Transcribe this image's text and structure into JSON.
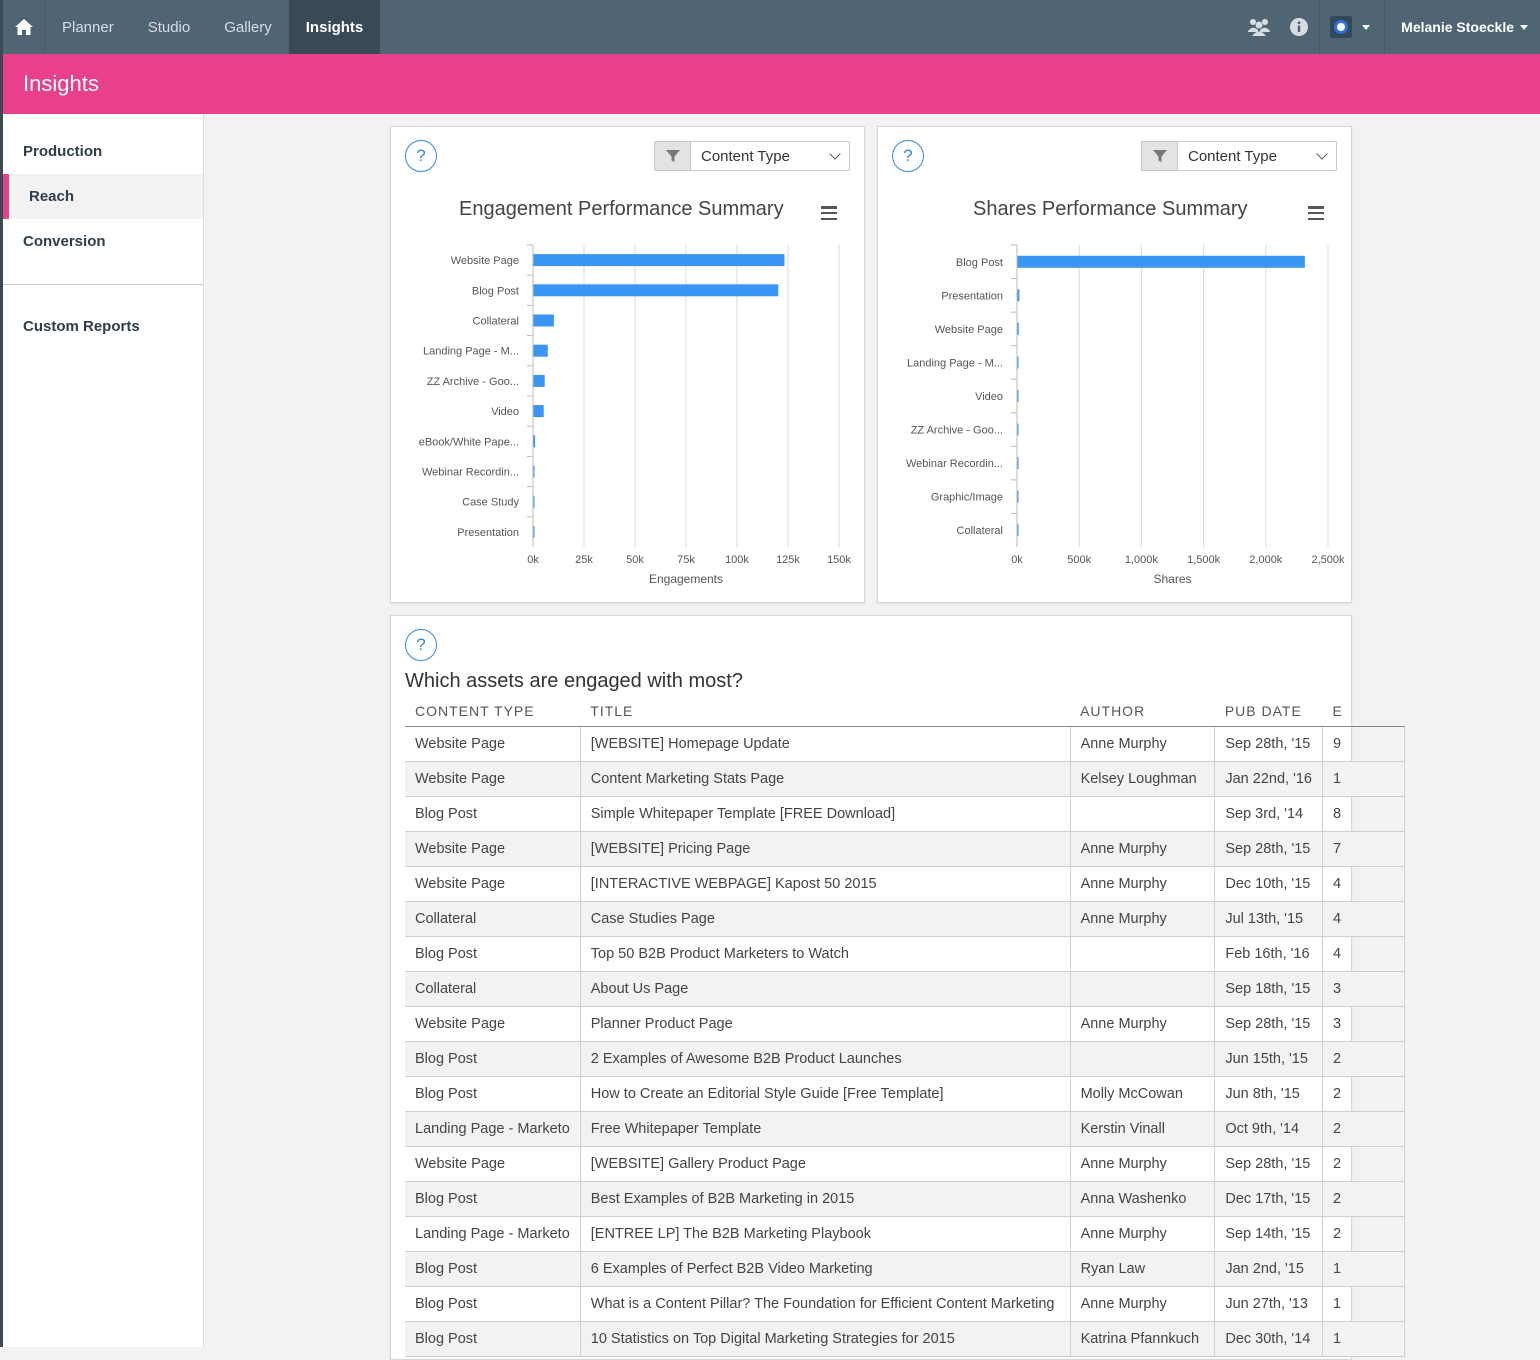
{
  "nav": {
    "tabs": [
      {
        "label": "Planner",
        "active": false
      },
      {
        "label": "Studio",
        "active": false
      },
      {
        "label": "Gallery",
        "active": false
      },
      {
        "label": "Insights",
        "active": true
      }
    ],
    "user_name": "Melanie Stoeckle"
  },
  "header": {
    "title": "Insights"
  },
  "sidebar": {
    "items": [
      {
        "label": "Production",
        "active": false
      },
      {
        "label": "Reach",
        "active": true
      },
      {
        "label": "Conversion",
        "active": false
      }
    ],
    "custom_reports": "Custom Reports"
  },
  "engagement_panel": {
    "help": "?",
    "filter_value": "Content Type"
  },
  "shares_panel": {
    "help": "?",
    "filter_value": "Content Type"
  },
  "chart_data": [
    {
      "type": "bar",
      "orientation": "horizontal",
      "title": "Engagement Performance Summary",
      "xlabel": "Engagements",
      "categories": [
        "Website Page",
        "Blog Post",
        "Collateral",
        "Landing Page - M...",
        "ZZ Archive - Goo...",
        "Video",
        "eBook/White Pape...",
        "Webinar Recordin...",
        "Case Study",
        "Presentation"
      ],
      "values": [
        123000,
        120000,
        10000,
        7000,
        5500,
        5000,
        800,
        200,
        100,
        50
      ],
      "xlim": [
        0,
        150000
      ],
      "ticks": [
        "0k",
        "25k",
        "50k",
        "75k",
        "100k",
        "125k",
        "150k"
      ],
      "color": "#3a95f3"
    },
    {
      "type": "bar",
      "orientation": "horizontal",
      "title": "Shares Performance Summary",
      "xlabel": "Shares",
      "categories": [
        "Blog Post",
        "Presentation",
        "Website Page",
        "Landing Page - M...",
        "Video",
        "ZZ Archive - Goo...",
        "Webinar Recordin...",
        "Graphic/Image",
        "Collateral"
      ],
      "values": [
        2310000,
        15000,
        10000,
        2000,
        1000,
        800,
        500,
        300,
        200
      ],
      "xlim": [
        0,
        2500000
      ],
      "ticks": [
        "0k",
        "500k",
        "1,000k",
        "1,500k",
        "2,000k",
        "2,500k"
      ],
      "color": "#3a95f3"
    }
  ],
  "assets_table": {
    "help": "?",
    "title": "Which assets are engaged with most?",
    "columns": [
      "CONTENT TYPE",
      "TITLE",
      "AUTHOR",
      "PUB DATE",
      "E"
    ],
    "rows": [
      [
        "Website Page",
        "[WEBSITE] Homepage Update",
        "Anne Murphy",
        "Sep 28th, '15",
        "9"
      ],
      [
        "Website Page",
        "Content Marketing Stats Page",
        "Kelsey Loughman",
        "Jan 22nd, '16",
        "1"
      ],
      [
        "Blog Post",
        "Simple Whitepaper Template [FREE Download]",
        "",
        "Sep 3rd, '14",
        "8"
      ],
      [
        "Website Page",
        "[WEBSITE] Pricing Page",
        "Anne Murphy",
        "Sep 28th, '15",
        "7"
      ],
      [
        "Website Page",
        "[INTERACTIVE WEBPAGE] Kapost 50 2015",
        "Anne Murphy",
        "Dec 10th, '15",
        "4"
      ],
      [
        "Collateral",
        "Case Studies Page",
        "Anne Murphy",
        "Jul 13th, '15",
        "4"
      ],
      [
        "Blog Post",
        "Top 50 B2B Product Marketers to Watch",
        "",
        "Feb 16th, '16",
        "4"
      ],
      [
        "Collateral",
        "About Us Page",
        "",
        "Sep 18th, '15",
        "3"
      ],
      [
        "Website Page",
        "Planner Product Page",
        "Anne Murphy",
        "Sep 28th, '15",
        "3"
      ],
      [
        "Blog Post",
        "2 Examples of Awesome B2B Product Launches",
        "",
        "Jun 15th, '15",
        "2"
      ],
      [
        "Blog Post",
        "How to Create an Editorial Style Guide [Free Template]",
        "Molly McCowan",
        "Jun 8th, '15",
        "2"
      ],
      [
        "Landing Page - Marketo",
        "Free Whitepaper Template",
        "Kerstin Vinall",
        "Oct 9th, '14",
        "2"
      ],
      [
        "Website Page",
        "[WEBSITE] Gallery Product Page",
        "Anne Murphy",
        "Sep 28th, '15",
        "2"
      ],
      [
        "Blog Post",
        "Best Examples of B2B Marketing in 2015",
        "Anna Washenko",
        "Dec 17th, '15",
        "2"
      ],
      [
        "Landing Page - Marketo",
        "[ENTREE LP] The B2B Marketing Playbook",
        "Anne Murphy",
        "Sep 14th, '15",
        "2"
      ],
      [
        "Blog Post",
        "6 Examples of Perfect B2B Video Marketing",
        "Ryan Law",
        "Jan 2nd, '15",
        "1"
      ],
      [
        "Blog Post",
        "What is a Content Pillar? The Foundation for Efficient Content Marketing",
        "Anne Murphy",
        "Jun 27th, '13",
        "1"
      ],
      [
        "Blog Post",
        "10 Statistics on Top Digital Marketing Strategies for 2015",
        "Katrina Pfannkuch",
        "Dec 30th, '14",
        "1"
      ]
    ]
  },
  "colors": {
    "nav": "#4f6574",
    "accent": "#e8408a",
    "bar": "#3a95f3",
    "help": "#2f8ad8"
  }
}
